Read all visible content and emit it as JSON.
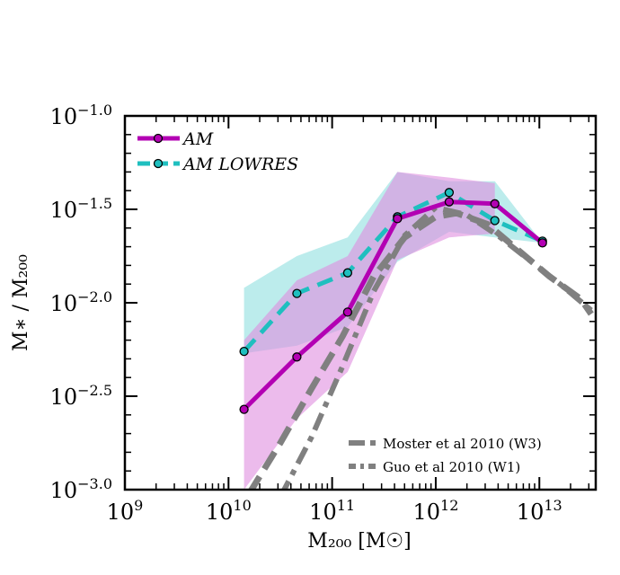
{
  "chart_data": {
    "type": "line",
    "xlabel": "M₂₀₀ [M☉]",
    "ylabel": "M∗ / M₂₀₀",
    "xscale": "log",
    "yscale": "log",
    "xlim": [
      1000000000.0,
      35000000000000.0
    ],
    "ylim": [
      -3.0,
      -1.0
    ],
    "x_ticks": [
      {
        "value": 9,
        "label": "10",
        "exp": "9"
      },
      {
        "value": 10,
        "label": "10",
        "exp": "10"
      },
      {
        "value": 11,
        "label": "10",
        "exp": "11"
      },
      {
        "value": 12,
        "label": "10",
        "exp": "12"
      },
      {
        "value": 13,
        "label": "10",
        "exp": "13"
      }
    ],
    "y_ticks": [
      {
        "value": -1.0,
        "label": "10",
        "exp": "−1.0"
      },
      {
        "value": -1.5,
        "label": "10",
        "exp": "−1.5"
      },
      {
        "value": -2.0,
        "label": "10",
        "exp": "−2.0"
      },
      {
        "value": -2.5,
        "label": "10",
        "exp": "−2.5"
      },
      {
        "value": -3.0,
        "label": "10",
        "exp": "−3.0"
      }
    ],
    "series": [
      {
        "name": "AM",
        "color": "#b300b3",
        "style": "solid-markers",
        "x_log": [
          10.15,
          10.66,
          11.15,
          11.63,
          12.13,
          12.57,
          13.03
        ],
        "y_log": [
          -2.57,
          -2.29,
          -2.05,
          -1.55,
          -1.46,
          -1.47,
          -1.68
        ],
        "band": {
          "color": "#e08ee0",
          "x_log": [
            10.15,
            10.66,
            11.15,
            11.63,
            12.13,
            12.57
          ],
          "lower": [
            -3.0,
            -2.62,
            -2.37,
            -1.77,
            -1.65,
            -1.63
          ],
          "upper": [
            -2.2,
            -1.88,
            -1.75,
            -1.3,
            -1.33,
            -1.36
          ]
        }
      },
      {
        "name": "AM LOWRES",
        "color": "#1fbfbf",
        "style": "dashed-markers",
        "x_log": [
          10.15,
          10.66,
          11.15,
          11.63,
          12.13,
          12.57,
          13.03
        ],
        "y_log": [
          -2.26,
          -1.95,
          -1.84,
          -1.54,
          -1.41,
          -1.56,
          -1.67
        ],
        "band": {
          "color": "#8fe0e0",
          "x_log": [
            10.15,
            10.66,
            11.15,
            11.63,
            12.13,
            12.57,
            13.03
          ],
          "lower": [
            -1.92,
            -1.75,
            -1.65,
            -1.3,
            -1.35,
            -1.35,
            -1.68
          ],
          "upper": [
            -1.92,
            -1.75,
            -1.65,
            -1.3,
            -1.35,
            -1.35,
            -1.68
          ]
        }
      },
      {
        "name": "Moster et al 2010 (W3)",
        "color": "#808080",
        "style": "dashed",
        "x_log": [
          10.2,
          10.5,
          10.8,
          11.1,
          11.4,
          11.7,
          12.0,
          12.2,
          12.5,
          12.8,
          13.1,
          13.4,
          13.5
        ],
        "y_log": [
          -3.02,
          -2.75,
          -2.46,
          -2.18,
          -1.86,
          -1.65,
          -1.54,
          -1.52,
          -1.58,
          -1.72,
          -1.86,
          -1.98,
          -2.06
        ]
      },
      {
        "name": "Guo et al 2010 (W1)",
        "color": "#808080",
        "style": "dashdot",
        "x_log": [
          10.5,
          10.8,
          11.1,
          11.4,
          11.7,
          12.0,
          12.3,
          12.6,
          12.9,
          13.2,
          13.5
        ],
        "y_log": [
          -3.04,
          -2.72,
          -2.34,
          -1.94,
          -1.64,
          -1.49,
          -1.53,
          -1.64,
          -1.77,
          -1.9,
          -2.04
        ]
      }
    ],
    "legend_top": {
      "position": "top-left",
      "labels": [
        "AM",
        "AM LOWRES"
      ]
    },
    "legend_bottom": {
      "position": "bottom-right",
      "labels": [
        "Moster et al 2010 (W3)",
        "Guo et al 2010 (W1)"
      ]
    }
  }
}
